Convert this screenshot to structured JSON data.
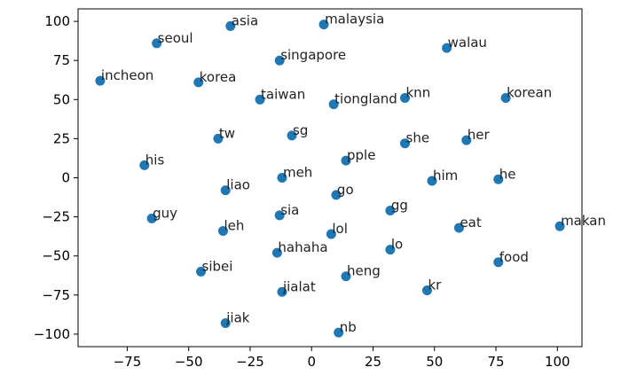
{
  "chart_data": {
    "type": "scatter",
    "title": "",
    "xlabel": "",
    "ylabel": "",
    "xlim": [
      -95,
      110
    ],
    "ylim": [
      -108,
      108
    ],
    "xticks": [
      -75,
      -50,
      -25,
      0,
      25,
      50,
      75,
      100
    ],
    "yticks": [
      100,
      75,
      50,
      25,
      0,
      -25,
      -50,
      -75,
      -100
    ],
    "grid": false,
    "marker_color": "#1f77b4",
    "points": [
      {
        "label": "asia",
        "x": -33,
        "y": 97
      },
      {
        "label": "malaysia",
        "x": 5,
        "y": 98
      },
      {
        "label": "seoul",
        "x": -63,
        "y": 86
      },
      {
        "label": "walau",
        "x": 55,
        "y": 83
      },
      {
        "label": "singapore",
        "x": -13,
        "y": 75
      },
      {
        "label": "incheon",
        "x": -86,
        "y": 62
      },
      {
        "label": "korea",
        "x": -46,
        "y": 61
      },
      {
        "label": "taiwan",
        "x": -21,
        "y": 50
      },
      {
        "label": "tiongland",
        "x": 9,
        "y": 47
      },
      {
        "label": "knn",
        "x": 38,
        "y": 51
      },
      {
        "label": "korean",
        "x": 79,
        "y": 51
      },
      {
        "label": "tw",
        "x": -38,
        "y": 25
      },
      {
        "label": "sg",
        "x": -8,
        "y": 27
      },
      {
        "label": "she",
        "x": 38,
        "y": 22
      },
      {
        "label": "her",
        "x": 63,
        "y": 24
      },
      {
        "label": "his",
        "x": -68,
        "y": 8
      },
      {
        "label": "pple",
        "x": 14,
        "y": 11
      },
      {
        "label": "meh",
        "x": -12,
        "y": 0
      },
      {
        "label": "him",
        "x": 49,
        "y": -2
      },
      {
        "label": "he",
        "x": 76,
        "y": -1
      },
      {
        "label": "liao",
        "x": -35,
        "y": -8
      },
      {
        "label": "go",
        "x": 10,
        "y": -11
      },
      {
        "label": "gg",
        "x": 32,
        "y": -21
      },
      {
        "label": "guy",
        "x": -65,
        "y": -26
      },
      {
        "label": "sia",
        "x": -13,
        "y": -24
      },
      {
        "label": "eat",
        "x": 60,
        "y": -32
      },
      {
        "label": "makan",
        "x": 101,
        "y": -31
      },
      {
        "label": "leh",
        "x": -36,
        "y": -34
      },
      {
        "label": "lol",
        "x": 8,
        "y": -36
      },
      {
        "label": "hahaha",
        "x": -14,
        "y": -48
      },
      {
        "label": "lo",
        "x": 32,
        "y": -46
      },
      {
        "label": "food",
        "x": 76,
        "y": -54
      },
      {
        "label": "sibei",
        "x": -45,
        "y": -60
      },
      {
        "label": "heng",
        "x": 14,
        "y": -63
      },
      {
        "label": "jialat",
        "x": -12,
        "y": -73
      },
      {
        "label": "kr",
        "x": 47,
        "y": -72
      },
      {
        "label": "jiak",
        "x": -35,
        "y": -93
      },
      {
        "label": "nb",
        "x": 11,
        "y": -99
      }
    ]
  }
}
